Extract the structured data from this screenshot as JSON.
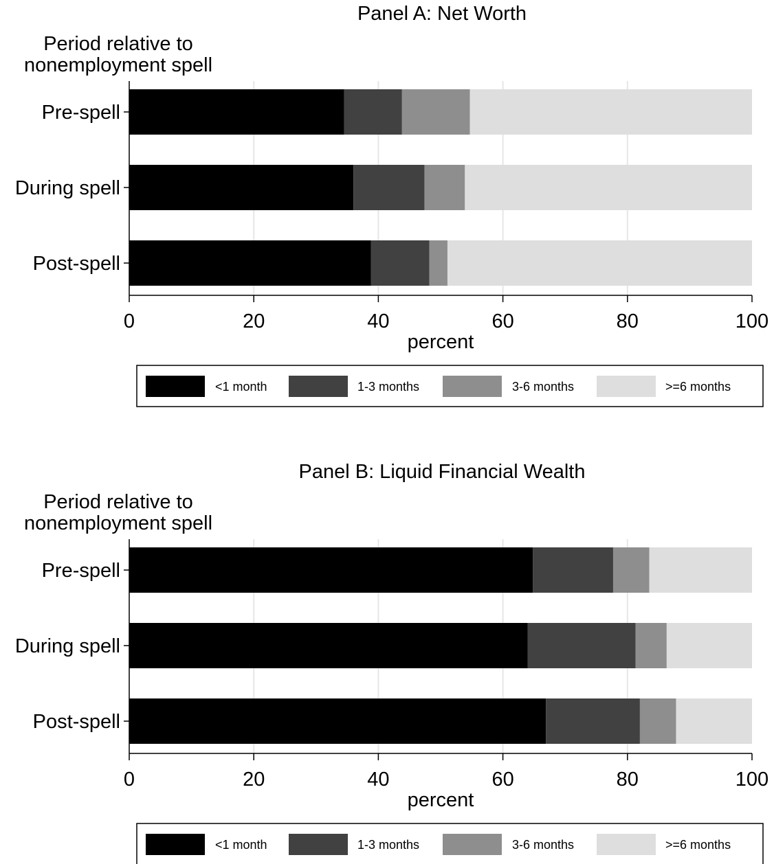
{
  "chart_data": [
    {
      "type": "bar",
      "orientation": "horizontal",
      "stacked": true,
      "title": "Panel A: Net Worth",
      "ylabel_lines": [
        "Period relative to",
        "nonemployment spell"
      ],
      "xlabel": "percent",
      "xlim": [
        0,
        100
      ],
      "xticks": [
        0,
        20,
        40,
        60,
        80,
        100
      ],
      "grid": "vertical",
      "legend_position": "bottom",
      "categories": [
        "Pre-spell",
        "During spell",
        "Post-spell"
      ],
      "series": [
        {
          "name": "<1 month",
          "color": "#000000",
          "values": [
            34.5,
            36.0,
            38.8
          ]
        },
        {
          "name": "1-3 months",
          "color": "#414141",
          "values": [
            9.3,
            11.4,
            9.4
          ]
        },
        {
          "name": "3-6 months",
          "color": "#8e8e8e",
          "values": [
            10.9,
            6.5,
            2.9
          ]
        },
        {
          "name": ">=6 months",
          "color": "#dedede",
          "values": [
            45.3,
            46.1,
            48.9
          ]
        }
      ]
    },
    {
      "type": "bar",
      "orientation": "horizontal",
      "stacked": true,
      "title": "Panel B: Liquid Financial Wealth",
      "ylabel_lines": [
        "Period relative to",
        "nonemployment spell"
      ],
      "xlabel": "percent",
      "xlim": [
        0,
        100
      ],
      "xticks": [
        0,
        20,
        40,
        60,
        80,
        100
      ],
      "grid": "vertical",
      "legend_position": "bottom",
      "categories": [
        "Pre-spell",
        "During spell",
        "Post-spell"
      ],
      "series": [
        {
          "name": "<1 month",
          "color": "#000000",
          "values": [
            64.8,
            64.0,
            66.9
          ]
        },
        {
          "name": "1-3 months",
          "color": "#414141",
          "values": [
            12.9,
            17.3,
            15.1
          ]
        },
        {
          "name": "3-6 months",
          "color": "#8e8e8e",
          "values": [
            5.8,
            5.0,
            5.8
          ]
        },
        {
          "name": ">=6 months",
          "color": "#dedede",
          "values": [
            16.5,
            13.7,
            12.2
          ]
        }
      ]
    }
  ]
}
